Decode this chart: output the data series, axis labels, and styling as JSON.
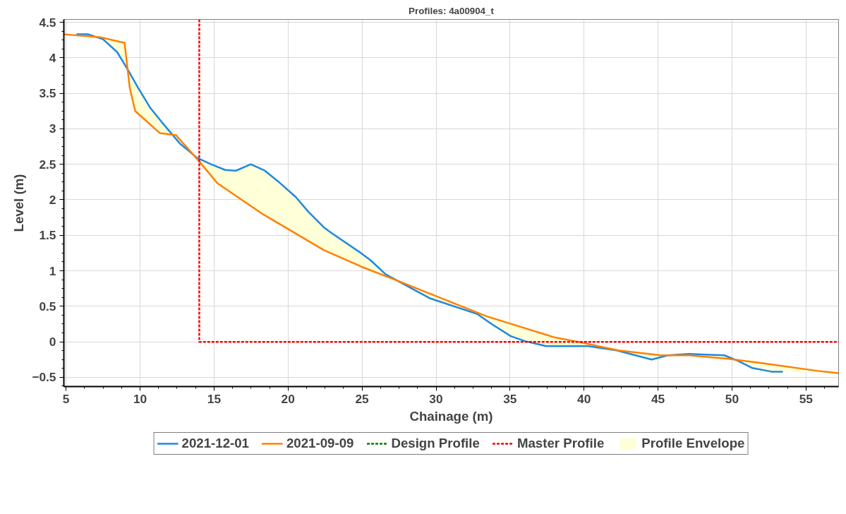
{
  "chart_data": {
    "type": "line",
    "title": "Profiles: 4a00904_t",
    "xlabel": "Chainage (m)",
    "ylabel": "Level (m)",
    "xlim": [
      4.85,
      57.2
    ],
    "ylim": [
      -0.63,
      4.54
    ],
    "xticks": [
      5,
      10,
      15,
      20,
      25,
      30,
      35,
      40,
      45,
      50,
      55
    ],
    "yticks": [
      -0.5,
      0,
      0.5,
      1,
      1.5,
      2,
      2.5,
      3,
      3.5,
      4,
      4.5
    ],
    "grid": true,
    "legend": "bottom",
    "series": [
      {
        "name": "2021-12-01",
        "color": "#1e88e5",
        "x": [
          5.7,
          6.5,
          7.5,
          8.45,
          9.15,
          9.86,
          10.67,
          11.48,
          12.7,
          13.86,
          14.8,
          15.76,
          16.48,
          17.48,
          18.43,
          19.38,
          20.52,
          21.38,
          22.43,
          22.95,
          24.86,
          25.57,
          26.6,
          27.57,
          29.62,
          32.8,
          33.76,
          35.05,
          36.0,
          37.43,
          39.14,
          40.29,
          42.2,
          44.57,
          45.67,
          47.1,
          49.48,
          50.43,
          51.38,
          52.67,
          53.43
        ],
        "values": [
          4.33,
          4.33,
          4.26,
          4.08,
          3.84,
          3.58,
          3.3,
          3.09,
          2.79,
          2.59,
          2.5,
          2.42,
          2.41,
          2.5,
          2.41,
          2.25,
          2.04,
          1.83,
          1.61,
          1.53,
          1.26,
          1.15,
          0.95,
          0.84,
          0.61,
          0.39,
          0.25,
          0.08,
          0.01,
          -0.06,
          -0.06,
          -0.06,
          -0.12,
          -0.25,
          -0.19,
          -0.17,
          -0.19,
          -0.27,
          -0.37,
          -0.42,
          -0.42
        ]
      },
      {
        "name": "2021-09-09",
        "color": "#ff8000",
        "x": [
          4.86,
          7.3,
          8.95,
          9.3,
          9.67,
          11.33,
          12.43,
          14.0,
          15.24,
          18.2,
          22.43,
          25.05,
          27.4,
          33.4,
          38.05,
          39.6,
          42.3,
          45.2,
          47.1,
          49.8,
          52.0,
          55.8,
          57.2
        ],
        "values": [
          4.33,
          4.29,
          4.21,
          3.58,
          3.25,
          2.94,
          2.91,
          2.54,
          2.23,
          1.81,
          1.29,
          1.05,
          0.86,
          0.36,
          0.06,
          0,
          -0.12,
          -0.19,
          -0.19,
          -0.24,
          -0.3,
          -0.41,
          -0.44
        ]
      },
      {
        "name": "Design Profile",
        "color": "#008000",
        "line_style": "dashed"
      },
      {
        "name": "Master Profile",
        "color": "#ff0000",
        "line_style": "dashed",
        "x": [
          14,
          14,
          57.2
        ],
        "values": [
          4.54,
          0,
          0
        ]
      },
      {
        "name": "Profile Envelope",
        "type": "area",
        "color": "#ffffd8"
      }
    ]
  }
}
